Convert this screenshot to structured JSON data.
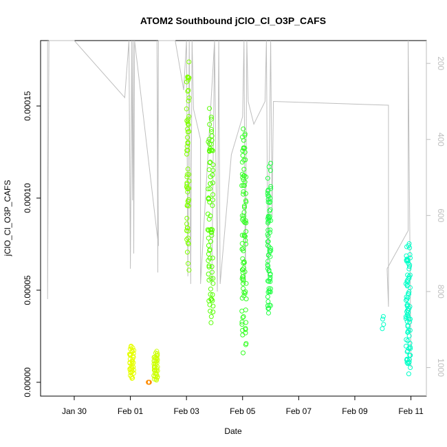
{
  "chart_data": {
    "type": "scatter",
    "title": "ATOM2 Southbound jClO_Cl_O3P_CAFS",
    "xlabel": "Date",
    "ylabel": "jClO_Cl_O3P_CAFS",
    "x_ticks": [
      {
        "date": "Jan 30",
        "day": -1
      },
      {
        "date": "Feb 01",
        "day": 1
      },
      {
        "date": "Feb 03",
        "day": 3
      },
      {
        "date": "Feb 05",
        "day": 5
      },
      {
        "date": "Feb 07",
        "day": 7
      },
      {
        "date": "Feb 09",
        "day": 9
      },
      {
        "date": "Feb 11",
        "day": 11
      }
    ],
    "y_ticks": [
      "0.00000",
      "0.00005",
      "0.00010",
      "0.00015"
    ],
    "y_tick_values": [
      0,
      5e-05,
      0.0001,
      0.00015
    ],
    "y2_ticks": [
      "200",
      "400",
      "600",
      "800",
      "1000"
    ],
    "y2_tick_values": [
      200,
      400,
      600,
      800,
      1000
    ],
    "y2_reversed": true,
    "xlim": [
      -2.2,
      11.55
    ],
    "ylim": [
      -7.5e-06,
      0.0001855
    ],
    "y2lim": [
      1075,
      140
    ],
    "grid": false,
    "colors": {
      "axis": "#000000",
      "secondary_axis": "#bebebe",
      "altitude_line": "#bebebe",
      "clusters": [
        "#ff8c00",
        "#e6ff00",
        "#ccff00",
        "#7fff00",
        "#55ff00",
        "#33ff22",
        "#22ff44",
        "#00ff88",
        "#00ffc8"
      ]
    },
    "clusters": [
      {
        "x_center": 1.7,
        "x_spread": 0.06,
        "y_min": 0.0,
        "y_max": 0.0,
        "count": 6,
        "color": "#ff8c00"
      },
      {
        "x_center": 1.05,
        "x_spread": 0.08,
        "y_min": 1e-06,
        "y_max": 2.05e-05,
        "count": 40,
        "color": "#e6ff00"
      },
      {
        "x_center": 1.9,
        "x_spread": 0.08,
        "y_min": 5e-07,
        "y_max": 1.75e-05,
        "count": 40,
        "color": "#ccff00"
      },
      {
        "x_center": 3.05,
        "x_spread": 0.05,
        "y_min": 5.9e-05,
        "y_max": 0.000178,
        "count": 60,
        "color": "#7fff00"
      },
      {
        "x_center": 3.85,
        "x_spread": 0.1,
        "y_min": 2.6e-05,
        "y_max": 0.000155,
        "count": 80,
        "color": "#55ff00"
      },
      {
        "x_center": 5.05,
        "x_spread": 0.08,
        "y_min": 1.1e-05,
        "y_max": 0.000144,
        "count": 90,
        "color": "#33ff22"
      },
      {
        "x_center": 5.95,
        "x_spread": 0.06,
        "y_min": 3.2e-05,
        "y_max": 0.000119,
        "count": 70,
        "color": "#22ff44"
      },
      {
        "x_center": 10.0,
        "x_spread": 0.03,
        "y_min": 2.9e-05,
        "y_max": 3.65e-05,
        "count": 4,
        "color": "#00ffc8"
      },
      {
        "x_center": 10.9,
        "x_spread": 0.08,
        "y_min": 3e-06,
        "y_max": 7.7e-05,
        "count": 80,
        "color": "#00ffc8"
      }
    ],
    "altitude_path": [
      [
        -1.95,
        140
      ],
      [
        -1.95,
        820
      ],
      [
        -1.9,
        140
      ],
      [
        -1.0,
        140
      ],
      [
        0.8,
        290
      ],
      [
        0.95,
        140
      ],
      [
        1.0,
        740
      ],
      [
        1.05,
        140
      ],
      [
        1.08,
        560
      ],
      [
        1.1,
        140
      ],
      [
        1.12,
        700
      ],
      [
        1.15,
        140
      ],
      [
        2.0,
        680
      ],
      [
        1.95,
        140
      ],
      [
        1.98,
        750
      ],
      [
        2.0,
        140
      ],
      [
        2.1,
        140
      ],
      [
        2.6,
        140
      ],
      [
        2.9,
        270
      ],
      [
        3.0,
        140
      ],
      [
        3.05,
        760
      ],
      [
        3.1,
        140
      ],
      [
        3.15,
        780
      ],
      [
        3.2,
        140
      ],
      [
        3.25,
        320
      ],
      [
        3.5,
        400
      ],
      [
        3.5,
        780
      ],
      [
        4.0,
        140
      ],
      [
        3.9,
        780
      ],
      [
        4.0,
        140
      ],
      [
        4.1,
        800
      ],
      [
        4.15,
        140
      ],
      [
        4.2,
        780
      ],
      [
        4.6,
        440
      ],
      [
        5.0,
        340
      ],
      [
        5.05,
        140
      ],
      [
        5.1,
        780
      ],
      [
        5.15,
        140
      ],
      [
        5.2,
        300
      ],
      [
        5.4,
        360
      ],
      [
        5.8,
        300
      ],
      [
        5.85,
        140
      ],
      [
        5.9,
        760
      ],
      [
        6.0,
        140
      ],
      [
        6.05,
        600
      ],
      [
        6.1,
        300
      ],
      [
        10.2,
        310
      ],
      [
        10.2,
        840
      ],
      [
        10.15,
        740
      ],
      [
        10.9,
        640
      ],
      [
        10.9,
        140
      ],
      [
        11.0,
        1000
      ]
    ]
  }
}
